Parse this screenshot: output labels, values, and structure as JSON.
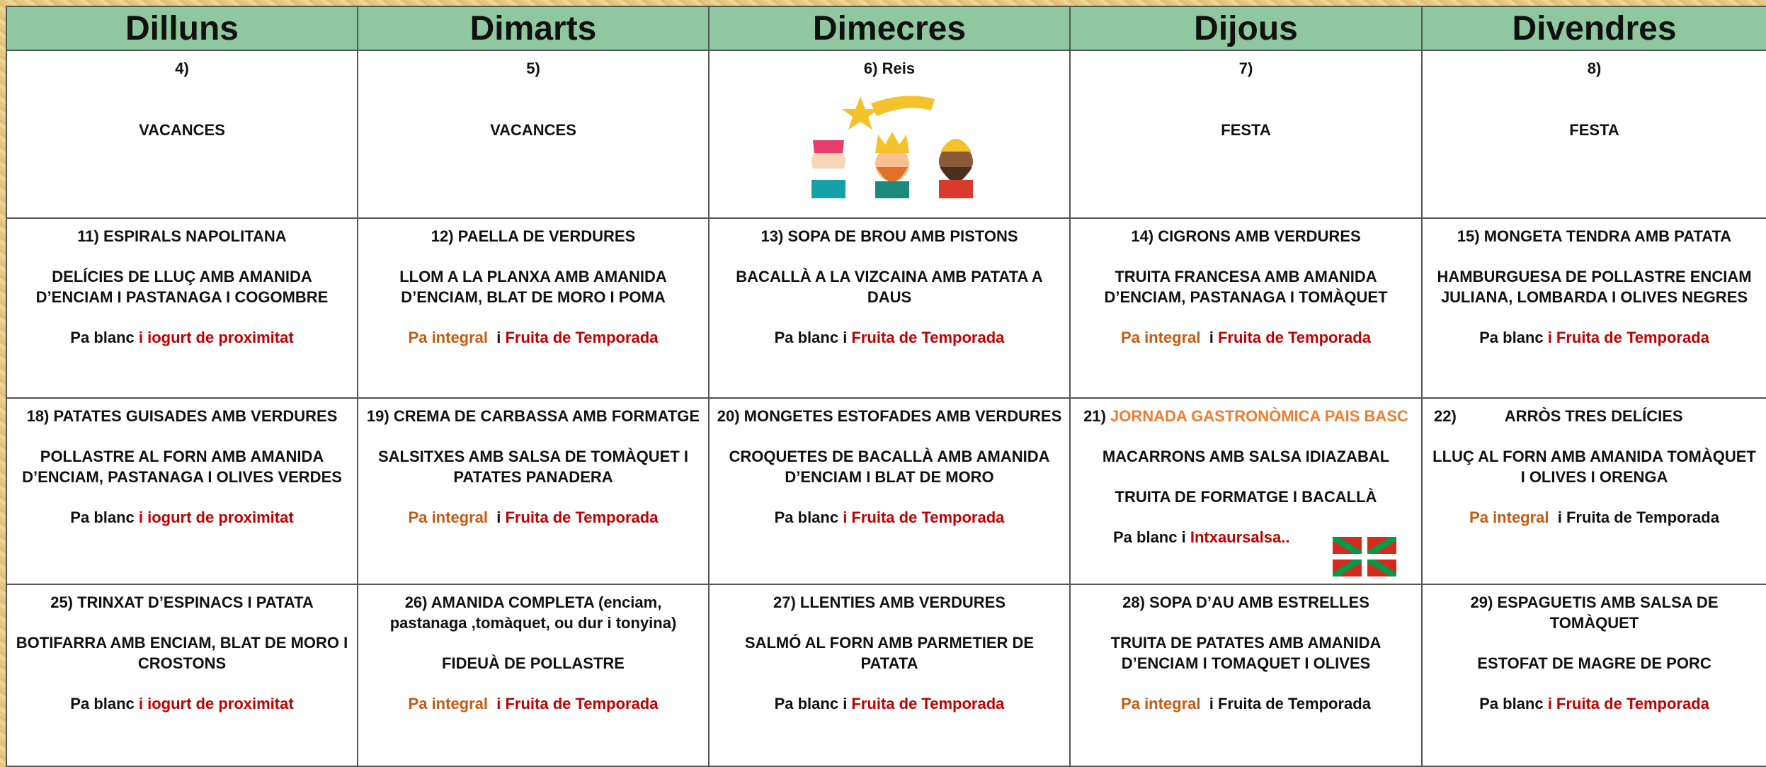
{
  "header": {
    "days": [
      "Dilluns",
      "Dimarts",
      "Dimecres",
      "Dijous",
      "Divendres"
    ]
  },
  "table": {
    "rows": [
      {
        "cells": [
          {
            "paragraphs": [
              [
                {
                  "text": "4)"
                }
              ],
              [
                {
                  "text": "VACANCES"
                }
              ]
            ]
          },
          {
            "paragraphs": [
              [
                {
                  "text": "5)"
                }
              ],
              [
                {
                  "text": "VACANCES"
                }
              ]
            ]
          },
          {
            "paragraphs": [
              [
                {
                  "text": "6) Reis"
                }
              ]
            ]
          },
          {
            "paragraphs": [
              [
                {
                  "text": "7)"
                }
              ],
              [
                {
                  "text": "FESTA"
                }
              ]
            ]
          },
          {
            "paragraphs": [
              [
                {
                  "text": "8)"
                }
              ],
              [
                {
                  "text": "FESTA"
                }
              ]
            ]
          }
        ]
      },
      {
        "cells": [
          {
            "paragraphs": [
              [
                {
                  "text": "11) ESPIRALS NAPOLITANA"
                }
              ],
              [
                {
                  "text": "DELÍCIES DE LLUÇ AMB AMANIDA D’ENCIAM I PASTANAGA I COGOMBRE"
                }
              ],
              [
                {
                  "text": "Pa blanc "
                },
                {
                  "text": "i iogurt de proximitat",
                  "color": "#c00000"
                }
              ]
            ]
          },
          {
            "paragraphs": [
              [
                {
                  "text": "12) PAELLA DE VERDURES"
                }
              ],
              [
                {
                  "text": "LLOM A LA PLANXA AMB AMANIDA D’ENCIAM, BLAT DE MORO I POMA"
                }
              ],
              [
                {
                  "text": "Pa integral",
                  "color": "#c55a11"
                },
                {
                  "text": "  i "
                },
                {
                  "text": "Fruita de Temporada",
                  "color": "#c00000"
                }
              ]
            ]
          },
          {
            "paragraphs": [
              [
                {
                  "text": "13) SOPA DE BROU AMB PISTONS"
                }
              ],
              [
                {
                  "text": "BACALLÀ A LA VIZCAINA AMB PATATA A DAUS"
                }
              ],
              [
                {
                  "text": "Pa blanc i "
                },
                {
                  "text": "Fruita de Temporada",
                  "color": "#c00000"
                }
              ]
            ]
          },
          {
            "paragraphs": [
              [
                {
                  "text": "14) CIGRONS AMB VERDURES"
                }
              ],
              [
                {
                  "text": "TRUITA FRANCESA AMB AMANIDA D’ENCIAM, PASTANAGA I TOMÀQUET"
                }
              ],
              [
                {
                  "text": "Pa integral",
                  "color": "#c55a11"
                },
                {
                  "text": "  i "
                },
                {
                  "text": "Fruita de Temporada",
                  "color": "#c00000"
                }
              ]
            ]
          },
          {
            "paragraphs": [
              [
                {
                  "text": "15) MONGETA TENDRA AMB PATATA"
                }
              ],
              [
                {
                  "text": "HAMBURGUESA DE POLLASTRE ENCIAM JULIANA, LOMBARDA I OLIVES NEGRES"
                }
              ],
              [
                {
                  "text": "Pa blanc "
                },
                {
                  "text": "i Fruita de Temporada",
                  "color": "#c00000"
                }
              ]
            ]
          }
        ]
      },
      {
        "cells": [
          {
            "paragraphs": [
              [
                {
                  "text": "18) PATATES GUISADES AMB VERDURES"
                }
              ],
              [
                {
                  "text": "POLLASTRE AL FORN AMB AMANIDA D’ENCIAM, PASTANAGA I OLIVES VERDES"
                }
              ],
              [
                {
                  "text": "Pa blanc "
                },
                {
                  "text": "i iogurt de proximitat",
                  "color": "#c00000"
                }
              ]
            ]
          },
          {
            "paragraphs": [
              [
                {
                  "text": "19) CREMA DE CARBASSA AMB FORMATGE"
                }
              ],
              [
                {
                  "text": "SALSITXES AMB SALSA DE TOMÀQUET I PATATES PANADERA"
                }
              ],
              [
                {
                  "text": "Pa integral",
                  "color": "#c55a11"
                },
                {
                  "text": "  i "
                },
                {
                  "text": "Fruita de Temporada",
                  "color": "#c00000"
                }
              ]
            ]
          },
          {
            "paragraphs": [
              [
                {
                  "text": "20) MONGETES ESTOFADES AMB VERDURES"
                }
              ],
              [
                {
                  "text": "CROQUETES DE BACALLÀ AMB AMANIDA D’ENCIAM I BLAT DE MORO"
                }
              ],
              [
                {
                  "text": "Pa blanc "
                },
                {
                  "text": "i Fruita de Temporada",
                  "color": "#c00000"
                }
              ]
            ]
          },
          {
            "paragraphs": [
              [
                {
                  "text": "21) "
                },
                {
                  "text": "JORNADA GASTRONÒMICA PAIS BASC",
                  "color": "#ed7d31"
                }
              ],
              [
                {
                  "text": "MACARRONS AMB SALSA IDIAZABAL"
                }
              ],
              [
                {
                  "text": "TRUITA DE FORMATGE I BACALLÀ"
                }
              ],
              [
                {
                  "text": "Pa blanc i "
                },
                {
                  "text": "Intxaursalsa..",
                  "color": "#c00000"
                }
              ]
            ]
          },
          {
            "paragraphs": [
              [
                {
                  "text": "22)"
                },
                {
                  "text": "ARRÒS TRES DELÍCIES"
                }
              ],
              [
                {
                  "text": "LLUÇ AL FORN AMB AMANIDA TOMÀQUET I OLIVES I ORENGA"
                }
              ],
              [
                {
                  "text": "Pa integral",
                  "color": "#c55a11"
                },
                {
                  "text": "  i Fruita de Temporada"
                }
              ]
            ]
          }
        ]
      },
      {
        "cells": [
          {
            "paragraphs": [
              [
                {
                  "text": "25) TRINXAT D’ESPINACS I PATATA"
                }
              ],
              [
                {
                  "text": "BOTIFARRA AMB ENCIAM, BLAT DE MORO I CROSTONS"
                }
              ],
              [
                {
                  "text": "Pa blanc "
                },
                {
                  "text": "i iogurt de proximitat",
                  "color": "#c00000"
                }
              ]
            ]
          },
          {
            "paragraphs": [
              [
                {
                  "text": "26) AMANIDA COMPLETA (enciam, pastanaga ,tomàquet, ou dur i tonyina)"
                }
              ],
              [
                {
                  "text": "FIDEUÀ DE POLLASTRE"
                }
              ],
              [
                {
                  "text": "Pa integral",
                  "color": "#c55a11"
                },
                {
                  "text": "  i Fruita de Temporada",
                  "color": "#c00000"
                }
              ]
            ]
          },
          {
            "paragraphs": [
              [
                {
                  "text": "27) LLENTIES AMB VERDURES"
                }
              ],
              [
                {
                  "text": "SALMÓ AL FORN AMB PARMETIER DE PATATA"
                }
              ],
              [
                {
                  "text": "Pa blanc i "
                },
                {
                  "text": "Fruita de Temporada",
                  "color": "#c00000"
                }
              ]
            ]
          },
          {
            "paragraphs": [
              [
                {
                  "text": "28) SOPA D’AU AMB ESTRELLES"
                }
              ],
              [
                {
                  "text": "TRUITA DE PATATES AMB AMANIDA D’ENCIAM I TOMAQUET I OLIVES"
                }
              ],
              [
                {
                  "text": "Pa integral",
                  "color": "#c55a11"
                },
                {
                  "text": "  i Fruita de Temporada"
                }
              ]
            ]
          },
          {
            "paragraphs": [
              [
                {
                  "text": "29) ESPAGUETIS AMB SALSA DE TOMÀQUET"
                }
              ],
              [
                {
                  "text": "ESTOFAT DE MAGRE DE PORC"
                }
              ],
              [
                {
                  "text": "Pa blanc "
                },
                {
                  "text": "i Fruita de Temporada",
                  "color": "#c00000"
                }
              ]
            ]
          }
        ]
      }
    ]
  }
}
